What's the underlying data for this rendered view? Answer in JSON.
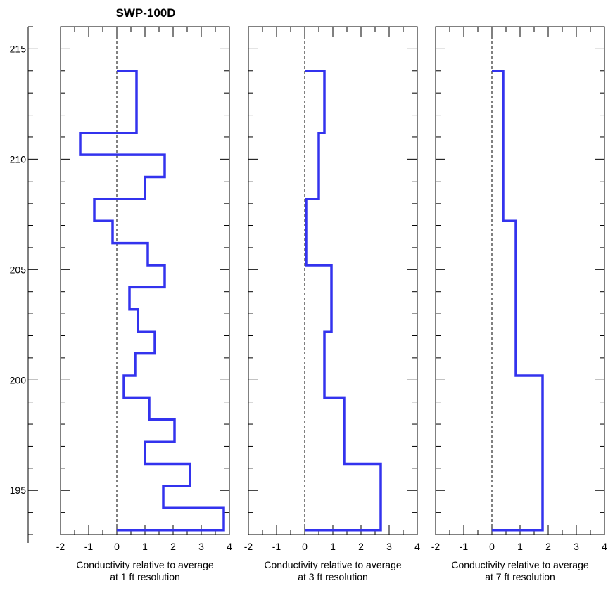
{
  "chart_data": {
    "type": "line",
    "title": "SWP-100D",
    "y_axis": {
      "ylim": [
        193,
        216
      ],
      "tick_values": [
        195,
        200,
        205,
        210,
        215
      ],
      "tick_labels": [
        "195",
        "200",
        "205",
        "210",
        "215"
      ]
    },
    "panels": [
      {
        "xlabel": [
          "Conductivity relative to average",
          "at 1 ft resolution"
        ],
        "xlim": [
          -2,
          4
        ],
        "tick_labels": [
          "-2",
          "-1",
          "0",
          "1",
          "2",
          "3",
          "4"
        ],
        "series": [
          {
            "color": "#3333ee",
            "points": [
              [
                0.0,
                214.0
              ],
              [
                0.7,
                214.0
              ],
              [
                0.7,
                211.2
              ],
              [
                -1.3,
                211.2
              ],
              [
                -1.3,
                210.2
              ],
              [
                1.7,
                210.2
              ],
              [
                1.7,
                209.2
              ],
              [
                1.0,
                209.2
              ],
              [
                1.0,
                208.2
              ],
              [
                -0.8,
                208.2
              ],
              [
                -0.8,
                207.2
              ],
              [
                -0.15,
                207.2
              ],
              [
                -0.15,
                206.2
              ],
              [
                1.1,
                206.2
              ],
              [
                1.1,
                205.2
              ],
              [
                1.7,
                205.2
              ],
              [
                1.7,
                204.2
              ],
              [
                0.45,
                204.2
              ],
              [
                0.45,
                203.2
              ],
              [
                0.75,
                203.2
              ],
              [
                0.75,
                202.2
              ],
              [
                1.35,
                202.2
              ],
              [
                1.35,
                201.2
              ],
              [
                0.65,
                201.2
              ],
              [
                0.65,
                200.2
              ],
              [
                0.25,
                200.2
              ],
              [
                0.25,
                199.2
              ],
              [
                1.15,
                199.2
              ],
              [
                1.15,
                198.2
              ],
              [
                2.05,
                198.2
              ],
              [
                2.05,
                197.2
              ],
              [
                1.0,
                197.2
              ],
              [
                1.0,
                196.2
              ],
              [
                2.6,
                196.2
              ],
              [
                2.6,
                195.2
              ],
              [
                1.65,
                195.2
              ],
              [
                1.65,
                194.2
              ],
              [
                3.8,
                194.2
              ],
              [
                3.8,
                193.2
              ],
              [
                0.0,
                193.2
              ]
            ]
          }
        ],
        "reference_line_x": 0
      },
      {
        "xlabel": [
          "Conductivity relative to average",
          "at 3 ft resolution"
        ],
        "xlim": [
          -2,
          4
        ],
        "tick_labels": [
          "-2",
          "-1",
          "0",
          "1",
          "2",
          "3",
          "4"
        ],
        "series": [
          {
            "color": "#3333ee",
            "points": [
              [
                0.0,
                214.0
              ],
              [
                0.7,
                214.0
              ],
              [
                0.7,
                211.2
              ],
              [
                0.5,
                211.2
              ],
              [
                0.5,
                208.2
              ],
              [
                0.05,
                208.2
              ],
              [
                0.05,
                205.2
              ],
              [
                0.95,
                205.2
              ],
              [
                0.95,
                202.2
              ],
              [
                0.7,
                202.2
              ],
              [
                0.7,
                199.2
              ],
              [
                1.4,
                199.2
              ],
              [
                1.4,
                196.2
              ],
              [
                2.7,
                196.2
              ],
              [
                2.7,
                193.2
              ],
              [
                0.0,
                193.2
              ]
            ]
          }
        ],
        "reference_line_x": 0
      },
      {
        "xlabel": [
          "Conductivity relative to average",
          "at 7 ft resolution"
        ],
        "xlim": [
          -2,
          4
        ],
        "tick_labels": [
          "-2",
          "-1",
          "0",
          "1",
          "2",
          "3",
          "4"
        ],
        "series": [
          {
            "color": "#3333ee",
            "points": [
              [
                0.0,
                214.0
              ],
              [
                0.4,
                214.0
              ],
              [
                0.4,
                207.2
              ],
              [
                0.85,
                207.2
              ],
              [
                0.85,
                200.2
              ],
              [
                1.8,
                200.2
              ],
              [
                1.8,
                193.2
              ],
              [
                0.0,
                193.2
              ]
            ]
          }
        ],
        "reference_line_x": 0
      }
    ]
  }
}
